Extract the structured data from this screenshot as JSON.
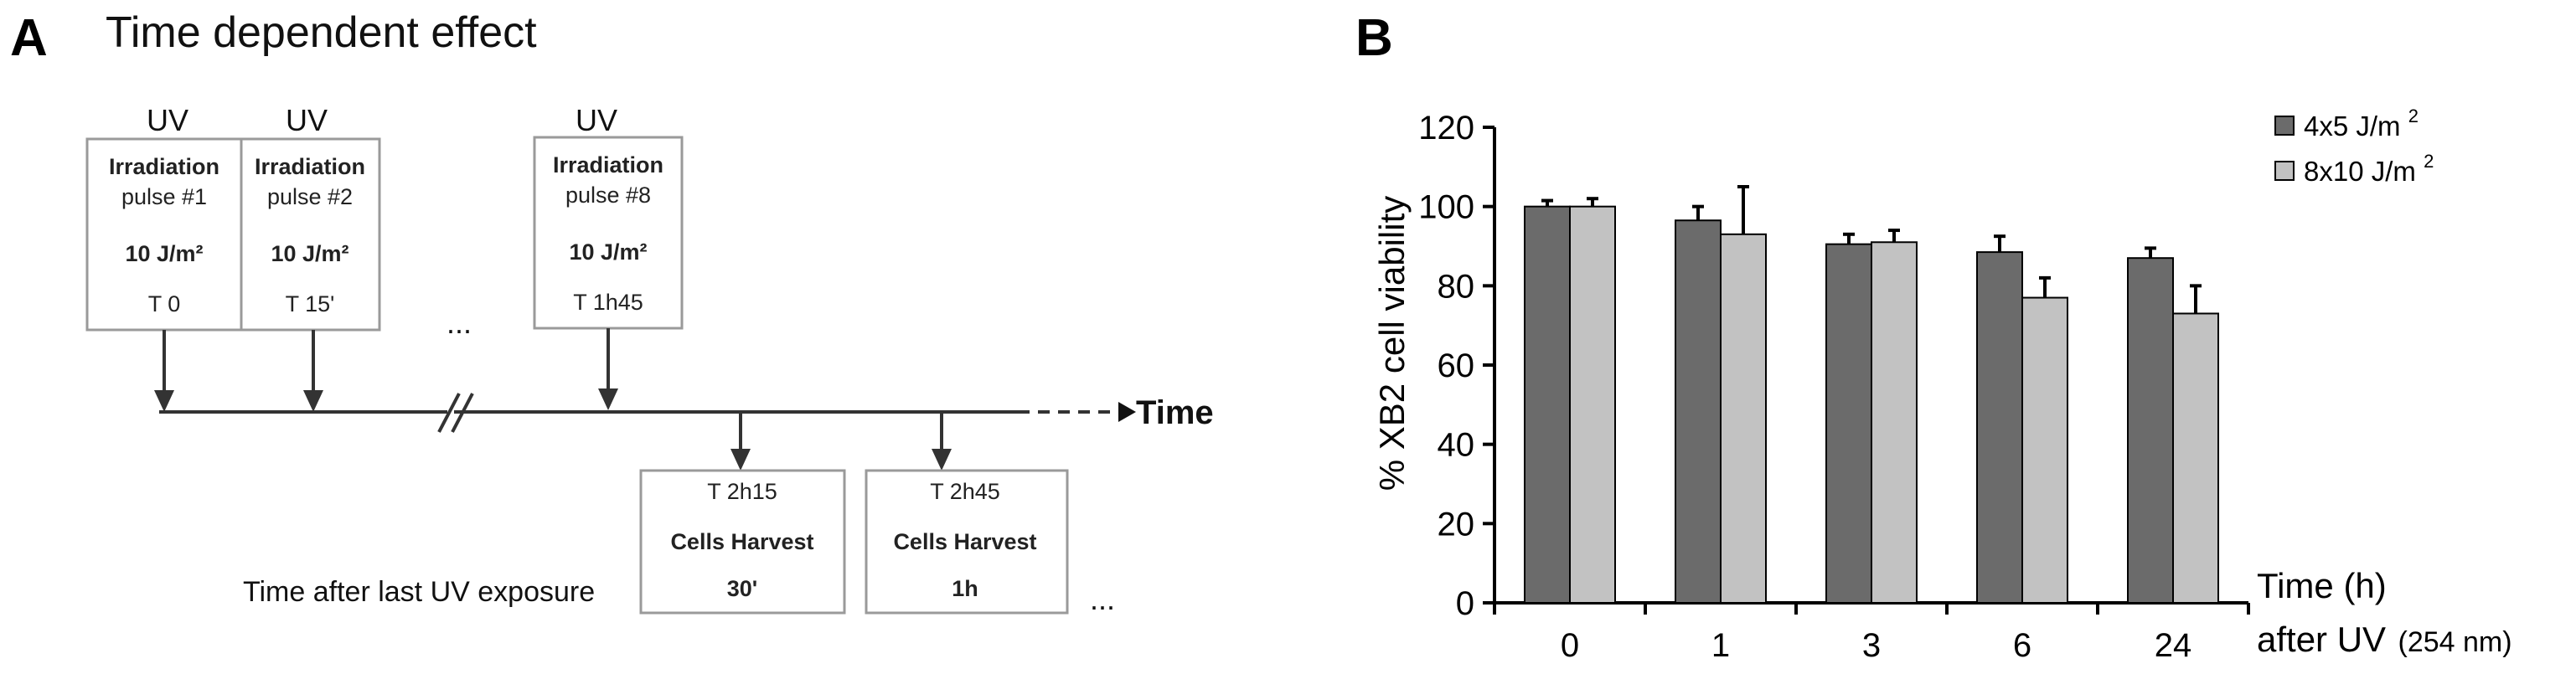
{
  "panel_a": {
    "letter": "A",
    "title": "Time dependent effect",
    "pulses": [
      {
        "uv": "UV",
        "l1": "Irradiation",
        "l2": "pulse #1",
        "dose": "10 J/m²",
        "time": "T 0"
      },
      {
        "uv": "UV",
        "l1": "Irradiation",
        "l2": "pulse #2",
        "dose": "10 J/m²",
        "time": "T 15'"
      },
      {
        "uv": "UV",
        "l1": "Irradiation",
        "l2": "pulse #8",
        "dose": "10 J/m²",
        "time": "T 1h45"
      }
    ],
    "ellipsis_mid": "...",
    "ellipsis_end": "...",
    "time_label": "Time",
    "harvests": [
      {
        "time": "T 2h15",
        "label": "Cells Harvest",
        "after": "30'"
      },
      {
        "time": "T 2h45",
        "label": "Cells Harvest",
        "after": "1h"
      }
    ],
    "after_label": "Time after last UV exposure"
  },
  "panel_b": {
    "letter": "B",
    "ylabel": "% XB2 cell viability",
    "xlabel_line1": "Time (h)",
    "xlabel_line2": "after UV",
    "xlabel_note": "(254 nm)",
    "legend": [
      {
        "text": "4x5 J/m",
        "sup": "2"
      },
      {
        "text": "8x10 J/m",
        "sup": "2"
      }
    ],
    "colors": {
      "series1": "#6b6b6b",
      "series2": "#c2c2c2"
    }
  },
  "chart_data": {
    "type": "bar",
    "categories": [
      "0",
      "1",
      "3",
      "6",
      "24"
    ],
    "series": [
      {
        "name": "4x5 J/m²",
        "values": [
          100,
          96.5,
          90.5,
          88.5,
          87
        ],
        "errors": [
          1.5,
          3.5,
          2.5,
          4,
          2.5
        ]
      },
      {
        "name": "8x10 J/m²",
        "values": [
          100,
          93,
          91,
          77,
          73
        ],
        "errors": [
          2,
          12,
          3,
          5,
          7
        ]
      }
    ],
    "ylim": [
      0,
      120
    ],
    "yticks": [
      0,
      20,
      40,
      60,
      80,
      100,
      120
    ],
    "ylabel": "% XB2 cell viability",
    "xlabel": "Time (h) after UV (254 nm)",
    "legend_position": "top-right",
    "grid": false
  }
}
